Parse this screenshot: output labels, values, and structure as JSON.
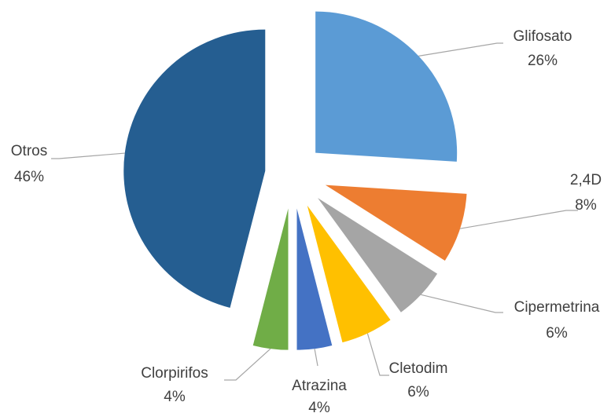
{
  "chart_data": {
    "type": "pie",
    "categories": [
      "Glifosato",
      "2,4D",
      "Cipermetrina",
      "Cletodim",
      "Atrazina",
      "Clorpirifos",
      "Otros"
    ],
    "values": [
      26,
      8,
      6,
      6,
      4,
      4,
      46
    ],
    "value_labels": [
      "26%",
      "8%",
      "6%",
      "6%",
      "4%",
      "4%",
      "46%"
    ],
    "colors": [
      "#5b9bd5",
      "#ed7d31",
      "#a5a5a5",
      "#ffc000",
      "#4472c4",
      "#70ad47",
      "#255e91"
    ]
  }
}
